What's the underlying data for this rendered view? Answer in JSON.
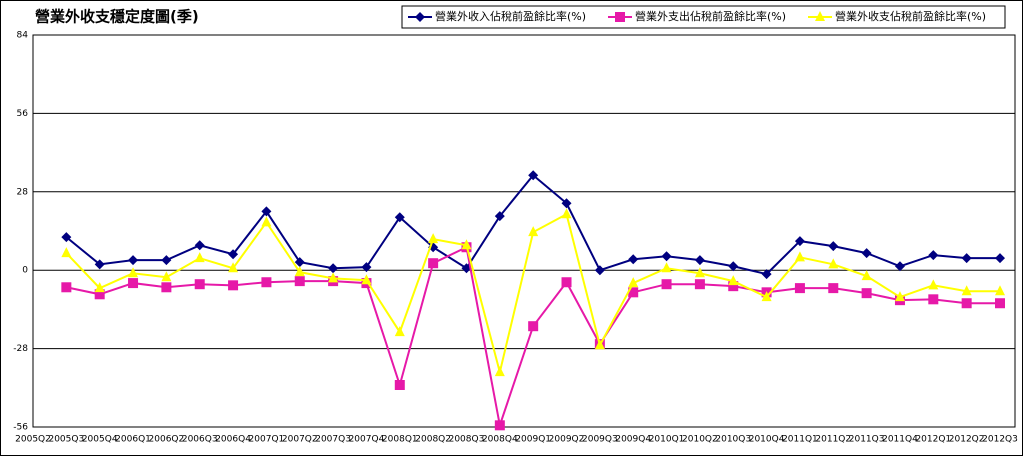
{
  "chart_data": {
    "type": "line",
    "title": "營業外收支穩定度圖(季)",
    "categories": [
      "2005Q2",
      "2005Q3",
      "2005Q4",
      "2006Q1",
      "2006Q2",
      "2006Q3",
      "2006Q4",
      "2007Q1",
      "2007Q2",
      "2007Q3",
      "2007Q4",
      "2008Q1",
      "2008Q2",
      "2008Q3",
      "2008Q4",
      "2009Q1",
      "2009Q2",
      "2009Q3",
      "2009Q4",
      "2010Q1",
      "2010Q2",
      "2010Q3",
      "2010Q4",
      "2011Q1",
      "2011Q2",
      "2011Q3",
      "2011Q4",
      "2012Q1",
      "2012Q2",
      "2012Q3"
    ],
    "series": [
      {
        "name": "營業外收入佔稅前盈餘比率(%)",
        "color": "#000080",
        "marker": "diamond",
        "values": [
          null,
          11.8,
          2.1,
          3.6,
          3.6,
          8.9,
          5.7,
          21,
          2.9,
          0.7,
          1.1,
          18.9,
          8.2,
          0.7,
          19.3,
          33.9,
          23.9,
          0,
          3.9,
          5,
          3.6,
          1.4,
          -1.4,
          10.4,
          8.6,
          6.1,
          1.4,
          5.4,
          4.3,
          4.3
        ]
      },
      {
        "name": "營業外支出佔稅前盈餘比率(%)",
        "color": "#e619a8",
        "marker": "square",
        "values": [
          null,
          -6.1,
          -8.6,
          -4.6,
          -6.1,
          -5,
          -5.4,
          -4.3,
          -3.9,
          -3.9,
          -4.6,
          -41,
          2.5,
          8.2,
          -55.4,
          -20,
          -4.3,
          -26.4,
          -7.9,
          -5,
          -5,
          -5.7,
          -7.9,
          -6.4,
          -6.4,
          -8.2,
          -10.7,
          -10.4,
          -11.8,
          -11.8
        ]
      },
      {
        "name": "營業外收支佔稅前盈餘比率(%)",
        "color": "#ffff00",
        "marker": "triangle",
        "values": [
          null,
          6.1,
          -6.4,
          -1.1,
          -2.5,
          4.3,
          0.7,
          17.1,
          -0.7,
          -2.9,
          -3.6,
          -22.1,
          11.1,
          8.9,
          -36.4,
          13.6,
          20,
          -26.8,
          -4.6,
          0.7,
          -1.1,
          -3.9,
          -9.6,
          4.6,
          2.1,
          -2.1,
          -9.6,
          -5.4,
          -7.5,
          -7.5
        ]
      }
    ],
    "ylim": [
      -56,
      84
    ],
    "yticks": [
      -56,
      -28,
      0,
      28,
      56,
      84
    ],
    "grid": true,
    "legend": "top-right"
  }
}
